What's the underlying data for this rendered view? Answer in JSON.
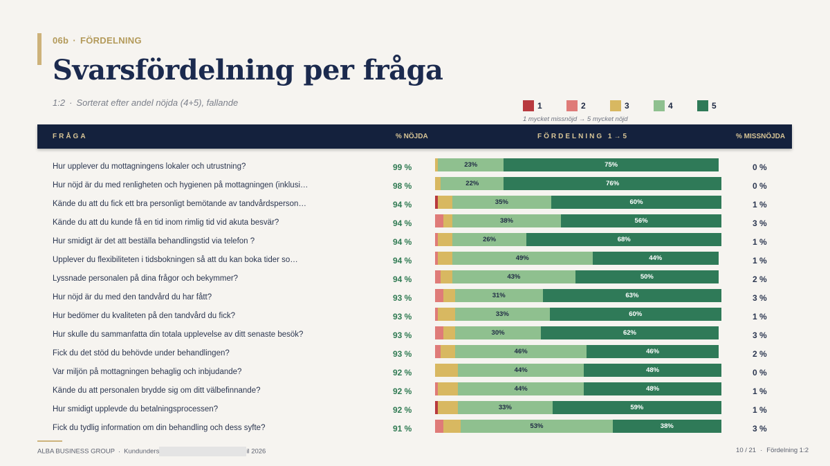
{
  "header": {
    "section_code": "06b",
    "section_sep": "·",
    "section_name": "FÖRDELNING",
    "title": "Svarsfördelning per fråga",
    "subtitle_ratio": "1:2",
    "subtitle_sep": "·",
    "subtitle_text": "Sorterat efter andel nöjda (4+5), fallande"
  },
  "legend": {
    "items": [
      {
        "label": "1",
        "color": "#b83a3f"
      },
      {
        "label": "2",
        "color": "#df7b78"
      },
      {
        "label": "3",
        "color": "#d8b861"
      },
      {
        "label": "4",
        "color": "#8fc08f"
      },
      {
        "label": "5",
        "color": "#2f7a58"
      }
    ],
    "note": "1 mycket missnöjd → 5 mycket nöjd"
  },
  "table_header": {
    "question": "FRÅGA",
    "satisfied": "% NÖJDA",
    "distribution": "FÖRDELNING 1→5",
    "dissatisfied": "% MISSNÖJDA"
  },
  "chart_data": {
    "type": "bar",
    "stacked": true,
    "orientation": "horizontal",
    "x_unit": "%",
    "categories": [
      "Hur upplever du mottagningens lokaler och utrustning?",
      "Hur nöjd är du med renligheten och hygienen på mottagningen (inklusi…",
      "Kände du att du fick ett bra personligt bemötande av tandvårdsperson…",
      "Kände du att du kunde få en tid inom rimlig tid vid akuta besvär?",
      "Hur smidigt är det att beställa behandlingstid via telefon ?",
      "Upplever du flexibiliteten i tidsbokningen så att du kan boka tider so…",
      "Lyssnade personalen på dina frågor och bekymmer?",
      "Hur nöjd är du med den tandvård du har fått?",
      "Hur bedömer du kvaliteten på den tandvård du fick?",
      "Hur skulle du sammanfatta din totala upplevelse av ditt senaste besök?",
      "Fick du det stöd du behövde under behandlingen?",
      "Var miljön på mottagningen behaglig och inbjudande?",
      "Kände du att personalen brydde sig om ditt välbefinnande?",
      "Hur smidigt upplevde du betalningsprocessen?",
      "Fick du tydlig information om din behandling och dess syfte?"
    ],
    "satisfied_labels": [
      "99 %",
      "98 %",
      "94 %",
      "94 %",
      "94 %",
      "94 %",
      "94 %",
      "93 %",
      "93 %",
      "93 %",
      "93 %",
      "92 %",
      "92 %",
      "92 %",
      "91 %"
    ],
    "dissatisfied_labels": [
      "0 %",
      "0 %",
      "1 %",
      "3 %",
      "1 %",
      "1 %",
      "2 %",
      "3 %",
      "1 %",
      "3 %",
      "2 %",
      "0 %",
      "1 %",
      "1 %",
      "3 %"
    ],
    "series": [
      {
        "name": "1",
        "color": "#b83a3f",
        "values": [
          0,
          0,
          1,
          0,
          0,
          0,
          0,
          0,
          0,
          0,
          0,
          0,
          0,
          1,
          0
        ]
      },
      {
        "name": "2",
        "color": "#df7b78",
        "values": [
          0,
          0,
          0,
          3,
          1,
          1,
          2,
          3,
          1,
          3,
          2,
          0,
          1,
          0,
          3
        ]
      },
      {
        "name": "3",
        "color": "#d8b861",
        "values": [
          1,
          2,
          5,
          3,
          5,
          5,
          4,
          4,
          6,
          4,
          5,
          8,
          7,
          7,
          6
        ]
      },
      {
        "name": "4",
        "color": "#8fc08f",
        "values": [
          23,
          22,
          35,
          38,
          26,
          49,
          43,
          31,
          33,
          30,
          46,
          44,
          44,
          33,
          53
        ]
      },
      {
        "name": "5",
        "color": "#2f7a58",
        "values": [
          75,
          76,
          60,
          56,
          68,
          44,
          50,
          63,
          60,
          62,
          46,
          48,
          48,
          59,
          38
        ]
      }
    ],
    "xlim": [
      0,
      100
    ]
  },
  "footer": {
    "org": "ALBA BUSINESS GROUP",
    "sep": "·",
    "report_start": "Kundunders",
    "report_end": "il 2026",
    "page": "10 / 21",
    "page_sep": "·",
    "section": "Fördelning 1:2"
  }
}
